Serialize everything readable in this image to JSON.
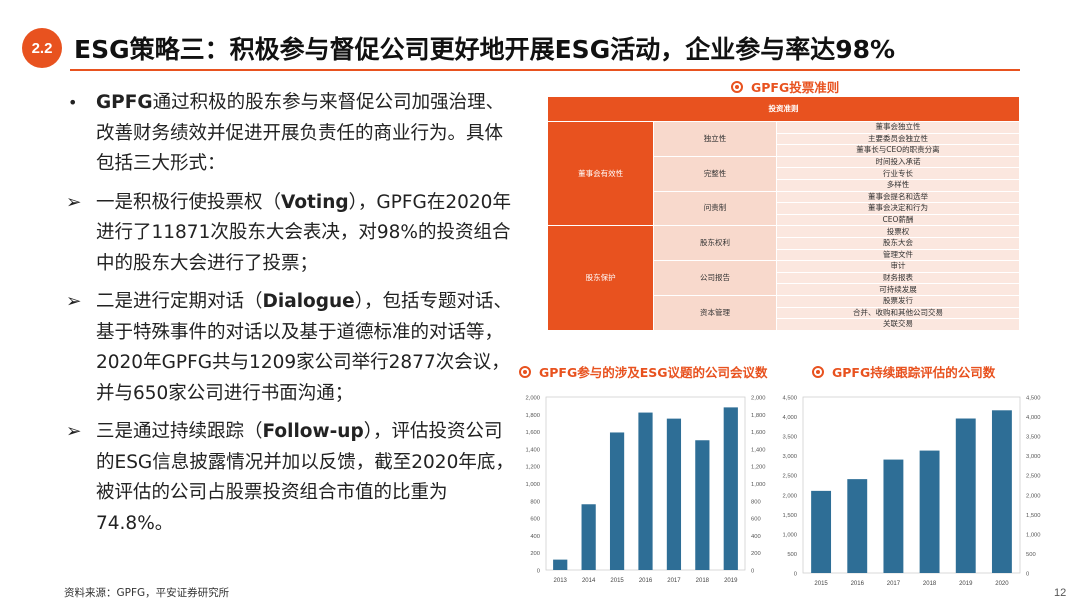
{
  "header": {
    "badge": "2.2",
    "title": "ESG策略三：积极参与督促公司更好地开展ESG活动，企业参与率达98%"
  },
  "left_text": [
    {
      "marker": "•",
      "type": "bullet",
      "bold": "GPFG",
      "rest": "通过积极的股东参与来督促公司加强治理、改善财务绩效并促进开展负责任的商业行为。具体包括三大形式："
    },
    {
      "marker": "➢",
      "type": "arrow",
      "pre": "一是积极行使投票权（",
      "bold": "Voting",
      "rest": "），GPFG在2020年进行了11871次股东大会表决，对98%的投资组合中的股东大会进行了投票；"
    },
    {
      "marker": "➢",
      "type": "arrow",
      "pre": "二是进行定期对话（",
      "bold": "Dialogue",
      "rest": "），包括专题对话、基于特殊事件的对话以及基于道德标准的对话等，2020年GPFG共与1209家公司举行2877次会议，并与650家公司进行书面沟通；"
    },
    {
      "marker": "➢",
      "type": "arrow",
      "pre": "三是通过持续跟踪（",
      "bold": "Follow-up",
      "rest": "），评估投资公司的ESG信息披露情况并加以反馈，截至2020年底，被评估的公司占股票投资组合市值的比重为74.8%。"
    }
  ],
  "table": {
    "title": "GPFG投票准则",
    "header": "投资准则",
    "groups": [
      {
        "name": "董事会有效性",
        "subs": [
          {
            "name": "独立性",
            "items": [
              "董事会独立性",
              "主要委员会独立性",
              "董事长与CEO的职责分离"
            ]
          },
          {
            "name": "完整性",
            "items": [
              "时间投入承诺",
              "行业专长",
              "多样性"
            ]
          },
          {
            "name": "问责制",
            "items": [
              "董事会提名和选举",
              "董事会决定和行为",
              "CEO薪酬"
            ]
          }
        ]
      },
      {
        "name": "股东保护",
        "subs": [
          {
            "name": "股东权利",
            "items": [
              "投票权",
              "股东大会",
              "管理文件"
            ]
          },
          {
            "name": "公司报告",
            "items": [
              "审计",
              "财务报表",
              "可持续发展"
            ]
          },
          {
            "name": "资本管理",
            "items": [
              "股票发行",
              "合并、收购和其他公司交易",
              "关联交易"
            ]
          }
        ]
      }
    ]
  },
  "chart_data": [
    {
      "type": "bar",
      "title": "GPFG参与的涉及ESG议题的公司会议数",
      "categories": [
        "2013",
        "2014",
        "2015",
        "2016",
        "2017",
        "2018",
        "2019"
      ],
      "values": [
        120,
        760,
        1590,
        1820,
        1750,
        1500,
        1880
      ],
      "ylim": [
        0,
        2000
      ],
      "yticks": [
        "0",
        "200",
        "400",
        "600",
        "800",
        "1,000",
        "1,200",
        "1,400",
        "1,600",
        "1,800",
        "2,000"
      ],
      "color": "#2e6e96"
    },
    {
      "type": "bar",
      "title": "GPFG持续跟踪评估的公司数",
      "categories": [
        "2015",
        "2016",
        "2017",
        "2018",
        "2019",
        "2020"
      ],
      "values": [
        2100,
        2400,
        2900,
        3130,
        3950,
        4160
      ],
      "ylim": [
        0,
        4500
      ],
      "yticks": [
        "0",
        "500",
        "1,000",
        "1,500",
        "2,000",
        "2,500",
        "3,000",
        "3,500",
        "4,000",
        "4,500"
      ],
      "color": "#2e6e96"
    }
  ],
  "footer": {
    "source": "资料来源：GPFG，平安证券研究所",
    "page": "12"
  },
  "colors": {
    "accent": "#e8521f",
    "bar": "#2e6e96"
  }
}
